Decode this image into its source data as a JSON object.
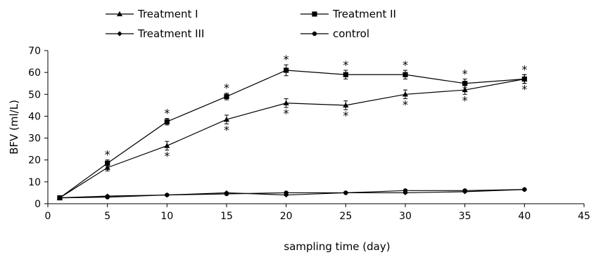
{
  "chart_data": {
    "type": "line",
    "title": "",
    "xlabel": "sampling time (day)",
    "ylabel": "BFV (ml/L)",
    "xlim": [
      0,
      45
    ],
    "ylim": [
      0,
      70
    ],
    "x_ticks": [
      "0",
      "5",
      "10",
      "15",
      "20",
      "25",
      "30",
      "35",
      "40",
      "45"
    ],
    "y_ticks": [
      "0",
      "10",
      "20",
      "30",
      "40",
      "50",
      "60",
      "70"
    ],
    "grid": false,
    "legend_position": "top",
    "significance_marker": "*",
    "series": [
      {
        "name": "Treatment I",
        "marker": "triangle",
        "x": [
          1,
          5,
          10,
          15,
          20,
          25,
          30,
          35,
          40
        ],
        "y": [
          2.7,
          16.5,
          26.5,
          38.5,
          46,
          45,
          50,
          52,
          57
        ],
        "error": [
          0,
          1.5,
          2,
          2,
          2,
          2,
          2,
          2,
          2
        ],
        "significance": [
          false,
          false,
          true,
          true,
          true,
          true,
          true,
          true,
          true
        ]
      },
      {
        "name": "Treatment II",
        "marker": "square",
        "x": [
          1,
          5,
          10,
          15,
          20,
          25,
          30,
          35,
          40
        ],
        "y": [
          2.7,
          18.5,
          37.5,
          49,
          61,
          59,
          59,
          55,
          57
        ],
        "error": [
          0,
          1.5,
          1.5,
          1.5,
          2.5,
          2,
          2,
          2,
          2
        ],
        "significance": [
          false,
          true,
          true,
          true,
          true,
          true,
          true,
          true,
          true
        ]
      },
      {
        "name": "Treatment III",
        "marker": "diamond",
        "x": [
          1,
          5,
          10,
          15,
          20,
          25,
          30,
          35,
          40
        ],
        "y": [
          2.7,
          3.5,
          4,
          5,
          4,
          5,
          5,
          5.5,
          6.5
        ],
        "error": [
          0,
          0.3,
          0.3,
          0.3,
          0.3,
          0.3,
          0.3,
          0.3,
          0.3
        ],
        "significance": [
          false,
          false,
          false,
          false,
          false,
          false,
          false,
          false,
          false
        ]
      },
      {
        "name": "control",
        "marker": "circle",
        "x": [
          1,
          5,
          10,
          15,
          20,
          25,
          30,
          35,
          40
        ],
        "y": [
          2.7,
          3,
          4,
          4.5,
          5,
          5,
          6,
          6,
          6.5
        ],
        "error": [
          0,
          0.3,
          0.3,
          0.3,
          0.3,
          0.3,
          0.3,
          0.3,
          0.3
        ],
        "significance": [
          false,
          false,
          false,
          false,
          false,
          false,
          false,
          false,
          false
        ]
      }
    ]
  }
}
